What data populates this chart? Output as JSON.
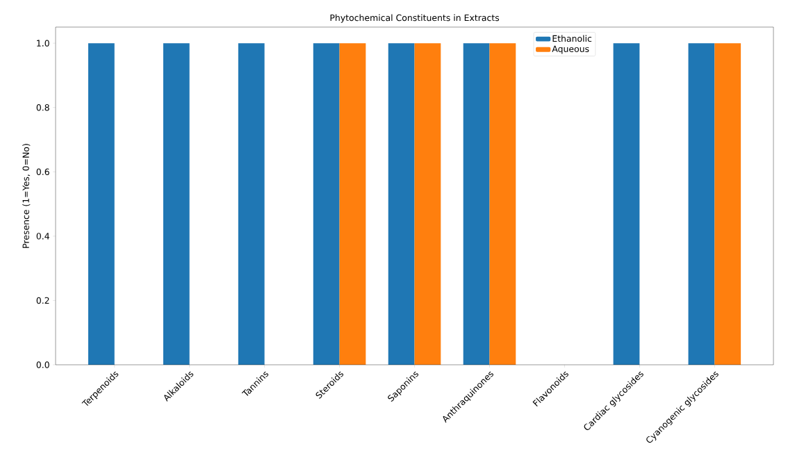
{
  "chart_data": {
    "type": "bar",
    "title": "Phytochemical Constituents in Extracts",
    "ylabel": "Presence (1=Yes, 0=No)",
    "categories": [
      "Terpenoids",
      "Alkaloids",
      "Tannins",
      "Steroids",
      "Saponins",
      "Anthraquinones",
      "Flavonoids",
      "Cardiac glycosides",
      "Cyanogenic glycosides"
    ],
    "series": [
      {
        "name": "Ethanolic",
        "color": "#1f77b4",
        "values": [
          1,
          1,
          1,
          1,
          1,
          1,
          0,
          1,
          1
        ]
      },
      {
        "name": "Aqueous",
        "color": "#ff7f0e",
        "values": [
          0,
          0,
          0,
          1,
          1,
          1,
          0,
          0,
          1
        ]
      }
    ],
    "ylim": [
      0,
      1.05
    ],
    "yticks": [
      {
        "value": 0,
        "label": "0.0"
      },
      {
        "value": 0.2,
        "label": "0.2"
      },
      {
        "value": 0.4,
        "label": "0.4"
      },
      {
        "value": 0.6,
        "label": "0.6"
      },
      {
        "value": 0.8,
        "label": "0.8"
      },
      {
        "value": 1,
        "label": "1.0"
      }
    ],
    "legend": "top",
    "grid": false
  }
}
